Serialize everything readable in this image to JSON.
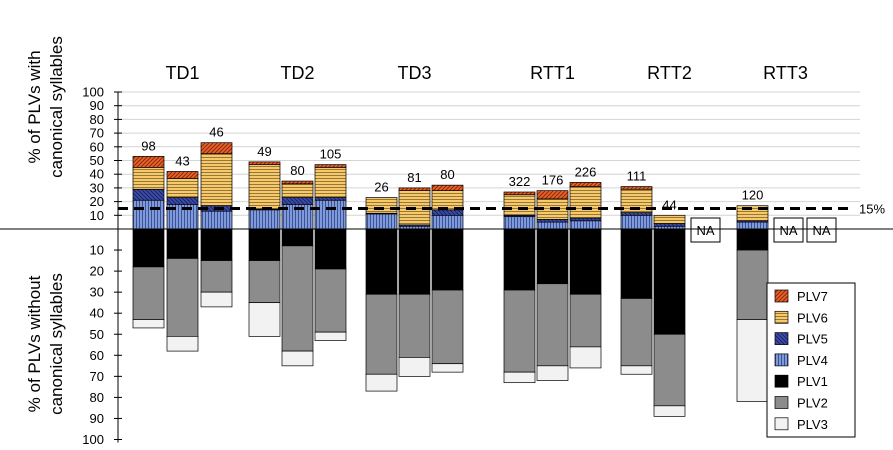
{
  "chart_data": {
    "type": "bar",
    "stacked": true,
    "ylabel_top": [
      "% of PLVs with",
      "canonical syllables"
    ],
    "ylabel_bottom": [
      "% of PLVs without",
      "canonical syllables"
    ],
    "y_ticks_up": [
      10,
      20,
      30,
      40,
      50,
      60,
      70,
      80,
      90,
      100
    ],
    "y_ticks_down": [
      10,
      20,
      30,
      40,
      50,
      60,
      70,
      80,
      90,
      100
    ],
    "ylim_up": [
      0,
      100
    ],
    "ylim_down": [
      0,
      100
    ],
    "grid": true,
    "reference_line": {
      "value": 15,
      "label": "15%"
    },
    "legend_position": "bottom-right",
    "colors": {
      "PLV7": "#e8622a",
      "PLV6": "#f7c96b",
      "PLV5": "#3c4aa8",
      "PLV4": "#7e9ad8",
      "PLV1": "#000000",
      "PLV2": "#8c8c8c",
      "PLV3": "#f2f2f2"
    },
    "legend": [
      "PLV7",
      "PLV6",
      "PLV5",
      "PLV4",
      "PLV1",
      "PLV2",
      "PLV3"
    ],
    "groups": [
      {
        "name": "TD1",
        "bars": [
          {
            "n": "98",
            "up": {
              "PLV4": 21,
              "PLV5": 8,
              "PLV6": 16,
              "PLV7": 8
            },
            "down": {
              "PLV1": 18,
              "PLV2": 25,
              "PLV3": 4
            }
          },
          {
            "n": "43",
            "up": {
              "PLV4": 18,
              "PLV5": 5,
              "PLV6": 14,
              "PLV7": 5
            },
            "down": {
              "PLV1": 14,
              "PLV2": 37,
              "PLV3": 7
            }
          },
          {
            "n": "46",
            "up": {
              "PLV4": 13,
              "PLV5": 4,
              "PLV6": 38,
              "PLV7": 8
            },
            "down": {
              "PLV1": 15,
              "PLV2": 15,
              "PLV3": 7
            }
          }
        ]
      },
      {
        "name": "TD2",
        "bars": [
          {
            "n": "49",
            "up": {
              "PLV4": 14,
              "PLV5": 0.5,
              "PLV6": 32.5,
              "PLV7": 2
            },
            "down": {
              "PLV1": 15,
              "PLV2": 20,
              "PLV3": 16
            }
          },
          {
            "n": "80",
            "up": {
              "PLV4": 18,
              "PLV5": 5,
              "PLV6": 10,
              "PLV7": 2
            },
            "down": {
              "PLV1": 8,
              "PLV2": 50,
              "PLV3": 7
            }
          },
          {
            "n": "105",
            "up": {
              "PLV4": 21,
              "PLV5": 2,
              "PLV6": 22,
              "PLV7": 2
            },
            "down": {
              "PLV1": 19,
              "PLV2": 30,
              "PLV3": 4
            }
          }
        ]
      },
      {
        "name": "TD3",
        "bars": [
          {
            "n": "26",
            "up": {
              "PLV4": 11,
              "PLV5": 0.5,
              "PLV6": 11.5,
              "PLV7": 0
            },
            "down": {
              "PLV1": 31,
              "PLV2": 38,
              "PLV3": 8
            }
          },
          {
            "n": "81",
            "up": {
              "PLV4": 2,
              "PLV5": 1,
              "PLV6": 25,
              "PLV7": 2
            },
            "down": {
              "PLV1": 31,
              "PLV2": 30,
              "PLV3": 9
            }
          },
          {
            "n": "80",
            "up": {
              "PLV4": 10,
              "PLV5": 4,
              "PLV6": 14,
              "PLV7": 4
            },
            "down": {
              "PLV1": 29,
              "PLV2": 35,
              "PLV3": 4
            }
          }
        ]
      },
      {
        "name": "RTT1",
        "bars": [
          {
            "n": "322",
            "up": {
              "PLV4": 9,
              "PLV5": 1,
              "PLV6": 15,
              "PLV7": 2
            },
            "down": {
              "PLV1": 29,
              "PLV2": 39,
              "PLV3": 5
            }
          },
          {
            "n": "176",
            "up": {
              "PLV4": 5,
              "PLV5": 2,
              "PLV6": 15,
              "PLV7": 6
            },
            "down": {
              "PLV1": 26,
              "PLV2": 39,
              "PLV3": 7
            }
          },
          {
            "n": "226",
            "up": {
              "PLV4": 6,
              "PLV5": 2,
              "PLV6": 23,
              "PLV7": 3
            },
            "down": {
              "PLV1": 31,
              "PLV2": 25,
              "PLV3": 10
            }
          }
        ]
      },
      {
        "name": "RTT2",
        "bars": [
          {
            "n": "111",
            "up": {
              "PLV4": 10,
              "PLV5": 2,
              "PLV6": 17,
              "PLV7": 2
            },
            "down": {
              "PLV1": 33,
              "PLV2": 32,
              "PLV3": 4
            }
          },
          {
            "n": "44",
            "up": {
              "PLV4": 2,
              "PLV5": 2,
              "PLV6": 6,
              "PLV7": 0
            },
            "down": {
              "PLV1": 50,
              "PLV2": 34,
              "PLV3": 5
            }
          },
          {
            "n": "NA",
            "na": true
          }
        ]
      },
      {
        "name": "RTT3",
        "bars": [
          {
            "n": "120",
            "up": {
              "PLV4": 5,
              "PLV5": 1,
              "PLV6": 11,
              "PLV7": 0
            },
            "down": {
              "PLV1": 10,
              "PLV2": 33,
              "PLV3": 39
            }
          },
          {
            "n": "NA",
            "na": true
          },
          {
            "n": "NA",
            "na": true
          }
        ]
      }
    ]
  }
}
